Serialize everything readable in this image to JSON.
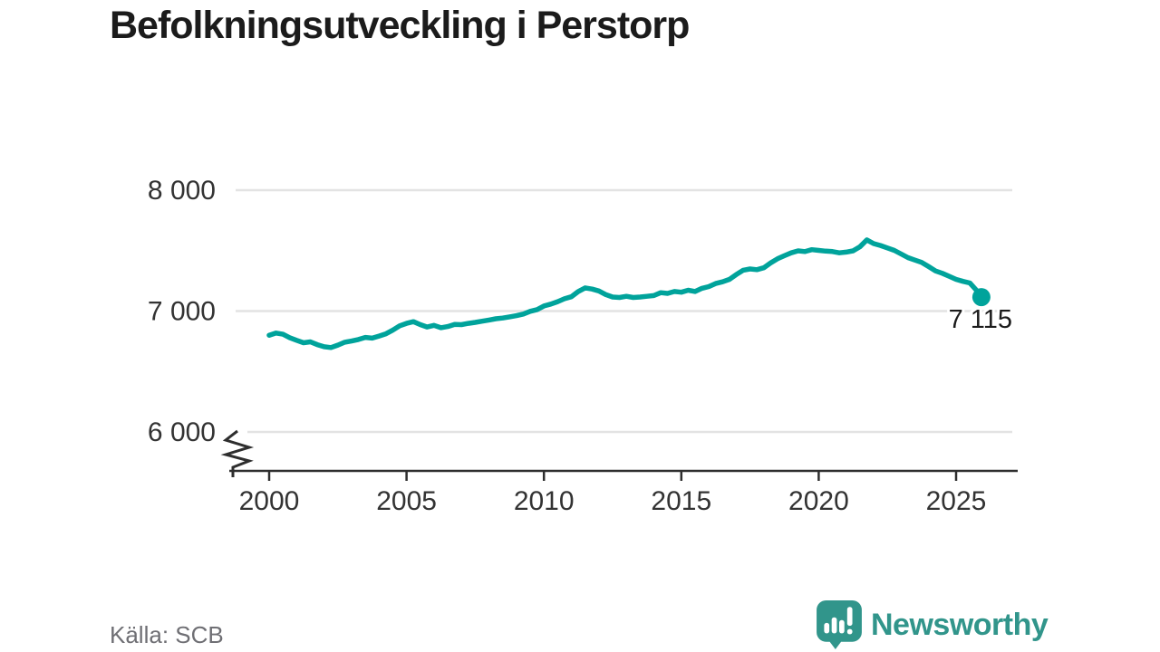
{
  "title": "Befolkningsutveckling i Perstorp",
  "source": {
    "text": "Källa: SCB"
  },
  "brand": {
    "name": "Newsworthy",
    "color": "#31958b"
  },
  "chart_data": {
    "type": "line",
    "title": "Befolkningsutveckling i Perstorp",
    "xlabel": "",
    "ylabel": "",
    "x_ticks": [
      "2000",
      "2005",
      "2010",
      "2015",
      "2020",
      "2025"
    ],
    "x_tick_values": [
      2000,
      2005,
      2010,
      2015,
      2020,
      2025
    ],
    "y_gridlines": [
      {
        "value": 8000,
        "label": "8 000"
      },
      {
        "value": 7000,
        "label": "7 000"
      },
      {
        "value": 6000,
        "label": "6 000",
        "after_break": true
      }
    ],
    "y_axis_break": true,
    "xlim": [
      1998.6,
      2027.3
    ],
    "ylim_visible": [
      6000,
      8000
    ],
    "grid": true,
    "legend_position": "none",
    "end_label": "7 115",
    "end_value": 7115,
    "line_color": "#00a39b",
    "grid_color": "#e3e3e3",
    "axis_color": "#2e2e2e",
    "series": [
      {
        "name": "Befolkning i Perstorp",
        "points": [
          [
            2000.0,
            6800
          ],
          [
            2000.25,
            6818
          ],
          [
            2000.5,
            6808
          ],
          [
            2000.75,
            6780
          ],
          [
            2001.0,
            6758
          ],
          [
            2001.25,
            6738
          ],
          [
            2001.5,
            6745
          ],
          [
            2001.75,
            6722
          ],
          [
            2002.0,
            6705
          ],
          [
            2002.25,
            6698
          ],
          [
            2002.5,
            6718
          ],
          [
            2002.75,
            6742
          ],
          [
            2003.0,
            6752
          ],
          [
            2003.25,
            6765
          ],
          [
            2003.5,
            6782
          ],
          [
            2003.75,
            6776
          ],
          [
            2004.0,
            6793
          ],
          [
            2004.25,
            6812
          ],
          [
            2004.5,
            6842
          ],
          [
            2004.75,
            6878
          ],
          [
            2005.0,
            6898
          ],
          [
            2005.25,
            6912
          ],
          [
            2005.5,
            6888
          ],
          [
            2005.75,
            6868
          ],
          [
            2006.0,
            6882
          ],
          [
            2006.25,
            6862
          ],
          [
            2006.5,
            6872
          ],
          [
            2006.75,
            6890
          ],
          [
            2007.0,
            6888
          ],
          [
            2007.25,
            6898
          ],
          [
            2007.5,
            6906
          ],
          [
            2007.75,
            6916
          ],
          [
            2008.0,
            6926
          ],
          [
            2008.25,
            6936
          ],
          [
            2008.5,
            6942
          ],
          [
            2008.75,
            6952
          ],
          [
            2009.0,
            6962
          ],
          [
            2009.25,
            6975
          ],
          [
            2009.5,
            6998
          ],
          [
            2009.75,
            7012
          ],
          [
            2010.0,
            7042
          ],
          [
            2010.25,
            7058
          ],
          [
            2010.5,
            7078
          ],
          [
            2010.75,
            7102
          ],
          [
            2011.0,
            7118
          ],
          [
            2011.25,
            7162
          ],
          [
            2011.5,
            7192
          ],
          [
            2011.75,
            7182
          ],
          [
            2012.0,
            7166
          ],
          [
            2012.25,
            7136
          ],
          [
            2012.5,
            7116
          ],
          [
            2012.75,
            7112
          ],
          [
            2013.0,
            7122
          ],
          [
            2013.25,
            7112
          ],
          [
            2013.5,
            7116
          ],
          [
            2013.75,
            7122
          ],
          [
            2014.0,
            7128
          ],
          [
            2014.25,
            7152
          ],
          [
            2014.5,
            7146
          ],
          [
            2014.75,
            7162
          ],
          [
            2015.0,
            7156
          ],
          [
            2015.25,
            7172
          ],
          [
            2015.5,
            7162
          ],
          [
            2015.75,
            7188
          ],
          [
            2016.0,
            7202
          ],
          [
            2016.25,
            7228
          ],
          [
            2016.5,
            7242
          ],
          [
            2016.75,
            7262
          ],
          [
            2017.0,
            7302
          ],
          [
            2017.25,
            7338
          ],
          [
            2017.5,
            7348
          ],
          [
            2017.75,
            7342
          ],
          [
            2018.0,
            7358
          ],
          [
            2018.25,
            7398
          ],
          [
            2018.5,
            7432
          ],
          [
            2018.75,
            7458
          ],
          [
            2019.0,
            7482
          ],
          [
            2019.25,
            7498
          ],
          [
            2019.5,
            7492
          ],
          [
            2019.75,
            7508
          ],
          [
            2020.0,
            7502
          ],
          [
            2020.25,
            7496
          ],
          [
            2020.5,
            7492
          ],
          [
            2020.75,
            7482
          ],
          [
            2021.0,
            7488
          ],
          [
            2021.25,
            7498
          ],
          [
            2021.5,
            7532
          ],
          [
            2021.75,
            7589
          ],
          [
            2022.0,
            7558
          ],
          [
            2022.25,
            7542
          ],
          [
            2022.5,
            7522
          ],
          [
            2022.75,
            7502
          ],
          [
            2023.0,
            7472
          ],
          [
            2023.25,
            7442
          ],
          [
            2023.5,
            7422
          ],
          [
            2023.75,
            7402
          ],
          [
            2024.0,
            7368
          ],
          [
            2024.25,
            7332
          ],
          [
            2024.5,
            7312
          ],
          [
            2024.75,
            7288
          ],
          [
            2025.0,
            7262
          ],
          [
            2025.25,
            7246
          ],
          [
            2025.5,
            7232
          ],
          [
            2025.75,
            7170
          ],
          [
            2025.92,
            7115
          ]
        ]
      }
    ]
  }
}
